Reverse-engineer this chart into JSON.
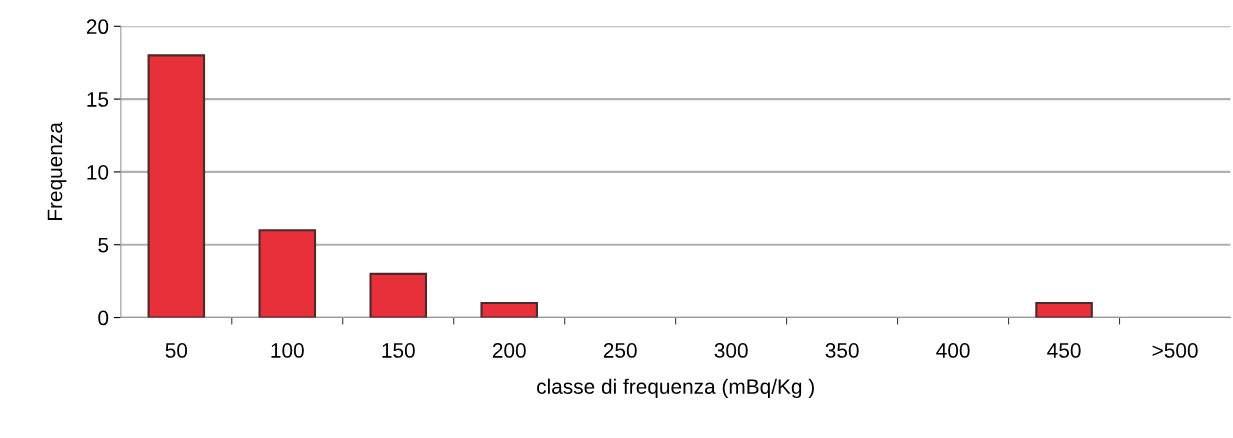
{
  "chart_data": {
    "type": "bar",
    "xlabel": "classe di frequenza (mBq/Kg )",
    "ylabel": "Frequenza",
    "categories": [
      "50",
      "100",
      "150",
      "200",
      "250",
      "300",
      "350",
      "400",
      "450",
      ">500"
    ],
    "values": [
      18,
      6,
      3,
      1,
      0,
      0,
      0,
      0,
      1,
      0
    ],
    "color": "#e8303a",
    "ylim": [
      0,
      20
    ],
    "yticks": [
      0,
      5,
      10,
      15,
      20
    ],
    "grid": "y"
  }
}
